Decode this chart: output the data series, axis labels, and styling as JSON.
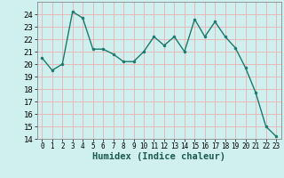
{
  "x": [
    0,
    1,
    2,
    3,
    4,
    5,
    6,
    7,
    8,
    9,
    10,
    11,
    12,
    13,
    14,
    15,
    16,
    17,
    18,
    19,
    20,
    21,
    22,
    23
  ],
  "y": [
    20.5,
    19.5,
    20.0,
    24.2,
    23.7,
    21.2,
    21.2,
    20.8,
    20.2,
    20.2,
    21.0,
    22.2,
    21.5,
    22.2,
    21.0,
    23.6,
    22.2,
    23.4,
    22.2,
    21.3,
    19.7,
    17.7,
    15.0,
    14.2
  ],
  "line_color": "#1a7a6e",
  "marker": "o",
  "marker_size": 2,
  "bg_color": "#cff0ee",
  "grid_color": "#e8b8b8",
  "xlabel": "Humidex (Indice chaleur)",
  "xlim": [
    -0.5,
    23.5
  ],
  "ylim": [
    14,
    25
  ],
  "yticks": [
    14,
    15,
    16,
    17,
    18,
    19,
    20,
    21,
    22,
    23,
    24
  ],
  "xticks": [
    0,
    1,
    2,
    3,
    4,
    5,
    6,
    7,
    8,
    9,
    10,
    11,
    12,
    13,
    14,
    15,
    16,
    17,
    18,
    19,
    20,
    21,
    22,
    23
  ],
  "label_fontsize": 7.5,
  "tick_fontsize": 6.5,
  "xtick_fontsize": 5.5
}
